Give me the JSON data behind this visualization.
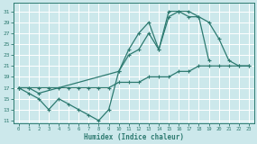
{
  "xlabel": "Humidex (Indice chaleur)",
  "bg_color": "#cce8eb",
  "grid_color": "#b0d4d8",
  "line_color": "#2d7a70",
  "xlim": [
    -0.5,
    23.5
  ],
  "ylim": [
    10.5,
    32.5
  ],
  "yticks": [
    11,
    13,
    15,
    17,
    19,
    21,
    23,
    25,
    27,
    29,
    31
  ],
  "xticks": [
    0,
    1,
    2,
    3,
    4,
    5,
    6,
    7,
    8,
    9,
    10,
    11,
    12,
    13,
    14,
    15,
    16,
    17,
    18,
    19,
    20,
    21,
    22,
    23
  ],
  "line1_x": [
    0,
    1,
    2,
    3,
    4,
    5,
    6,
    7,
    8,
    9,
    10,
    11,
    12,
    13,
    14,
    15,
    16,
    17,
    18,
    19
  ],
  "line1_y": [
    17,
    16,
    15,
    13,
    15,
    14,
    13,
    12,
    11,
    13,
    20,
    24,
    27,
    29,
    24,
    31,
    31,
    30,
    30,
    22
  ],
  "line2_x": [
    0,
    1,
    2,
    10,
    11,
    12,
    13,
    14,
    15,
    16,
    17,
    18,
    19,
    20,
    21,
    22,
    23
  ],
  "line2_y": [
    17,
    17,
    16,
    20,
    23,
    24,
    27,
    24,
    30,
    31,
    31,
    30,
    29,
    26,
    22,
    21,
    21
  ],
  "line3_x": [
    0,
    1,
    2,
    3,
    4,
    5,
    6,
    7,
    8,
    9,
    10,
    11,
    12,
    13,
    14,
    15,
    16,
    17,
    18,
    19,
    20,
    21,
    22,
    23
  ],
  "line3_y": [
    17,
    17,
    17,
    17,
    17,
    17,
    17,
    17,
    17,
    17,
    18,
    18,
    18,
    19,
    19,
    19,
    20,
    20,
    21,
    21,
    21,
    21,
    21,
    21
  ]
}
